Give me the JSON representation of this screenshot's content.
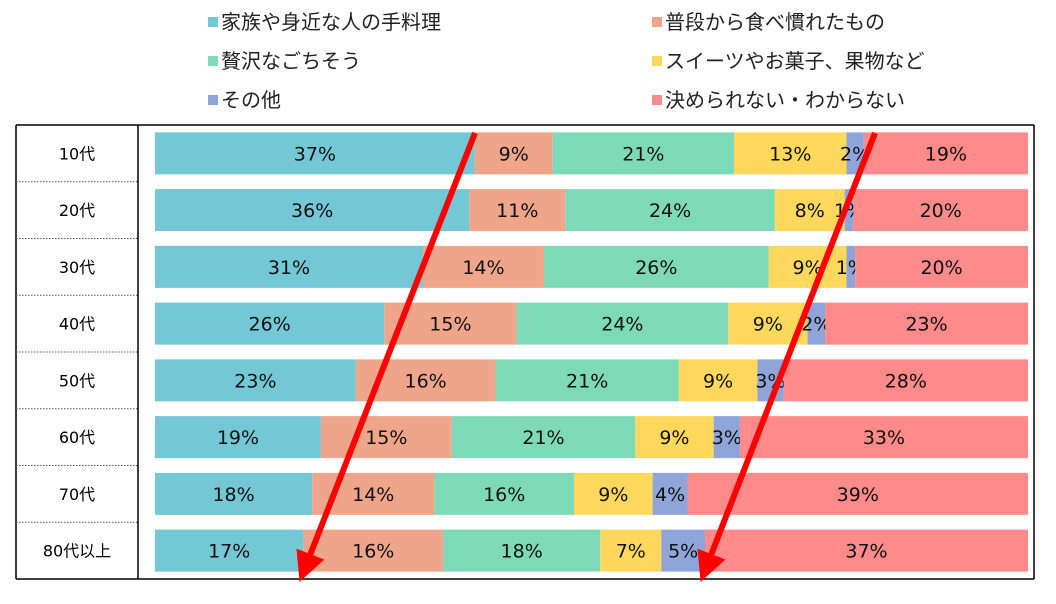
{
  "chart_data": {
    "type": "bar",
    "orientation": "horizontal",
    "stacked": true,
    "normalized": true,
    "categories": [
      "10代",
      "20代",
      "30代",
      "40代",
      "50代",
      "60代",
      "70代",
      "80代以上"
    ],
    "series": [
      {
        "name": "家族や身近な人の手料理",
        "color": "#74c7d4",
        "values": [
          37,
          36,
          31,
          26,
          23,
          19,
          18,
          17
        ]
      },
      {
        "name": "普段から食べ慣れたもの",
        "color": "#eea58a",
        "values": [
          9,
          11,
          14,
          15,
          16,
          15,
          14,
          16
        ]
      },
      {
        "name": "贅沢なごちそう",
        "color": "#7ed9b9",
        "values": [
          21,
          24,
          26,
          24,
          21,
          21,
          16,
          18
        ]
      },
      {
        "name": "スイーツやお菓子、果物など",
        "color": "#fdd85c",
        "values": [
          13,
          8,
          9,
          9,
          9,
          9,
          9,
          7
        ]
      },
      {
        "name": "その他",
        "color": "#8fa5d9",
        "values": [
          2,
          1,
          1,
          2,
          3,
          3,
          4,
          5
        ]
      },
      {
        "name": "決められない・わからない",
        "color": "#ff8a8a",
        "values": [
          19,
          20,
          20,
          23,
          28,
          33,
          39,
          37
        ]
      }
    ],
    "value_suffix": "%",
    "legend_position": "top",
    "annotations": "two red arrows pointing down-left across the bars",
    "grid": false
  }
}
